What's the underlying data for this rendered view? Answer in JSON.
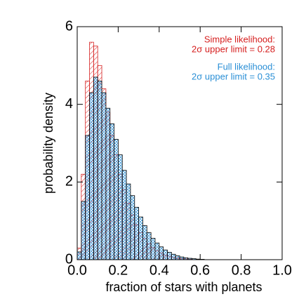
{
  "chart_data": {
    "type": "histogram",
    "x_label": "fraction of stars with planets",
    "y_label": "probability density",
    "xlim": [
      0,
      1
    ],
    "ylim": [
      0,
      6
    ],
    "xticks": [
      {
        "value": 0,
        "label": "0.0"
      },
      {
        "value": 0.2,
        "label": "0.2"
      },
      {
        "value": 0.4,
        "label": "0.4"
      },
      {
        "value": 0.6,
        "label": "0.6"
      },
      {
        "value": 0.8,
        "label": "0.8"
      },
      {
        "value": 1,
        "label": "1.0"
      }
    ],
    "yticks": [
      0,
      2,
      4,
      6
    ],
    "bins": [
      0,
      0.02,
      0.04,
      0.06,
      0.08,
      0.1,
      0.12,
      0.14,
      0.16,
      0.18,
      0.2,
      0.22,
      0.24,
      0.26,
      0.28,
      0.3,
      0.32,
      0.34,
      0.36,
      0.38,
      0.4,
      0.42,
      0.44,
      0.46,
      0.48,
      0.5,
      0.52,
      0.54,
      0.56,
      0.58,
      0.6,
      0.62
    ],
    "series": [
      {
        "name": "Simple likelihood:",
        "color": "#d62020",
        "values": [
          0.3,
          2.2,
          4.6,
          5.6,
          5.5,
          5.0,
          4.4,
          3.8,
          3.2,
          2.7,
          2.2,
          1.8,
          1.45,
          1.15,
          0.9,
          0.7,
          0.54,
          0.41,
          0.31,
          0.23,
          0.17,
          0.12,
          0.09,
          0.06,
          0.04,
          0.03,
          0.02,
          0.01,
          0,
          0,
          0
        ]
      },
      {
        "name": "Full likelihood:",
        "color": "#2a8fd6",
        "values": [
          0.2,
          1.5,
          3.2,
          4.3,
          4.7,
          4.6,
          4.3,
          3.9,
          3.5,
          3.1,
          2.7,
          2.3,
          1.95,
          1.65,
          1.35,
          1.1,
          0.88,
          0.7,
          0.55,
          0.43,
          0.33,
          0.25,
          0.19,
          0.14,
          0.1,
          0.07,
          0.05,
          0.035,
          0.025,
          0.015,
          0.01
        ]
      }
    ],
    "annotations": [
      "2σ upper limit = 0.28",
      "2σ upper limit = 0.35"
    ]
  }
}
